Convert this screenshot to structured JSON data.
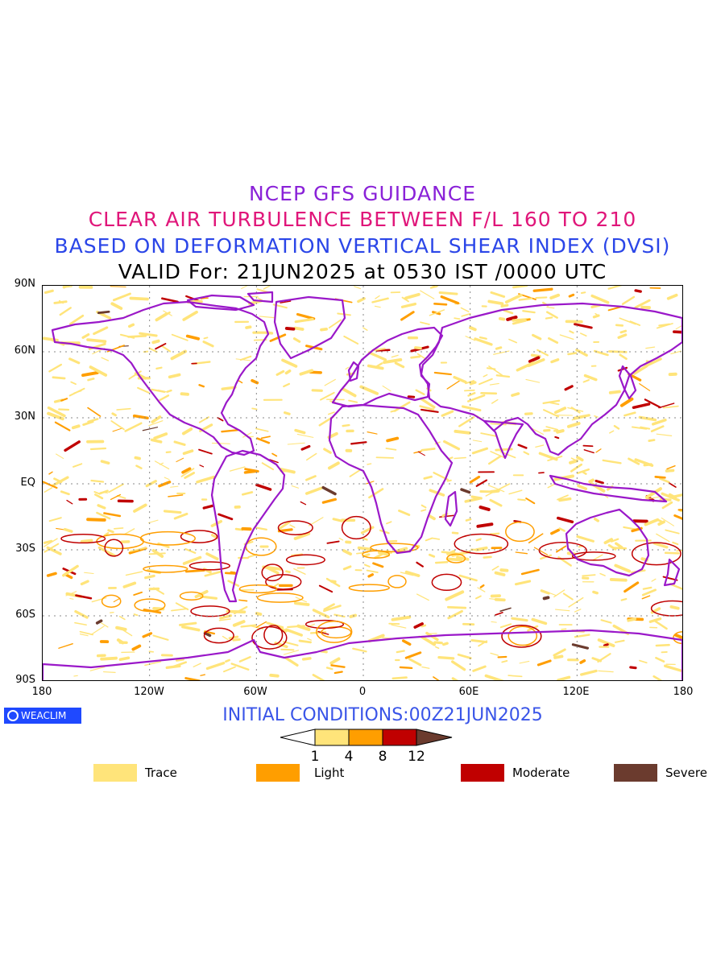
{
  "header": {
    "line1": "NCEP GFS GUIDANCE",
    "line2": "CLEAR AIR TURBULENCE BETWEEN F/L 160 TO 210",
    "line3": "BASED ON DEFORMATION VERTICAL SHEAR INDEX (DVSI)",
    "line4": "VALID For: 21JUN2025 at 0530 IST /0000 UTC"
  },
  "colors": {
    "line1": "#8a22d8",
    "line2": "#e0167a",
    "line3": "#2b46e8",
    "line4": "#000000",
    "coast": "#9a18c9",
    "init": "#3a55e8"
  },
  "axes": {
    "lat_labels": [
      "90N",
      "60N",
      "30N",
      "EQ",
      "30S",
      "60S",
      "90S"
    ],
    "lon_labels": [
      "180",
      "120W",
      "60W",
      "0",
      "60E",
      "120E",
      "180"
    ]
  },
  "logo": {
    "text": "WEACLIM"
  },
  "footer": {
    "initial_conditions": "INITIAL CONDITIONS:00Z21JUN2025"
  },
  "colorbar": {
    "ticks": [
      "1",
      "4",
      "8",
      "12"
    ],
    "colors": [
      "#ffe47a",
      "#ff9e00",
      "#c00000",
      "#6b3b2e"
    ]
  },
  "legend": [
    {
      "label": "Trace",
      "color": "#ffe47a"
    },
    {
      "label": "Light",
      "color": "#ff9e00"
    },
    {
      "label": "Moderate",
      "color": "#c00000"
    },
    {
      "label": "Severe",
      "color": "#6b3b2e"
    }
  ]
}
